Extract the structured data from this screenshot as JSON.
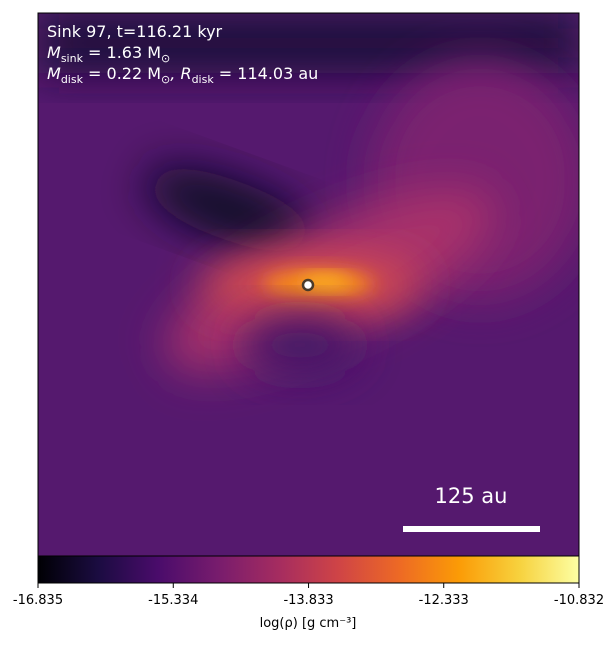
{
  "chart_data": {
    "type": "heatmap",
    "annotations": [
      {
        "text": "Sink 97, t=116.21 kyr"
      },
      {
        "symbol": "M",
        "subscript": "sink",
        "text": " = 1.63 M",
        "suffix_subscript": "⊙"
      },
      {
        "symbol": "M",
        "subscript": "disk",
        "text": " = 0.22 M",
        "suffix_subscript": "⊙",
        "more_symbol": ", R",
        "more_subscript": "disk",
        "more_text": " = 114.03 au"
      }
    ],
    "scale_bar_label": "125 au",
    "colorbar": {
      "label": "log(ρ) [g cm⁻³]",
      "colormap": "inferno",
      "lim": [
        -16.835,
        -10.832
      ],
      "ticks": [
        -16.835,
        -15.334,
        -13.833,
        -12.333,
        -10.832
      ]
    }
  }
}
